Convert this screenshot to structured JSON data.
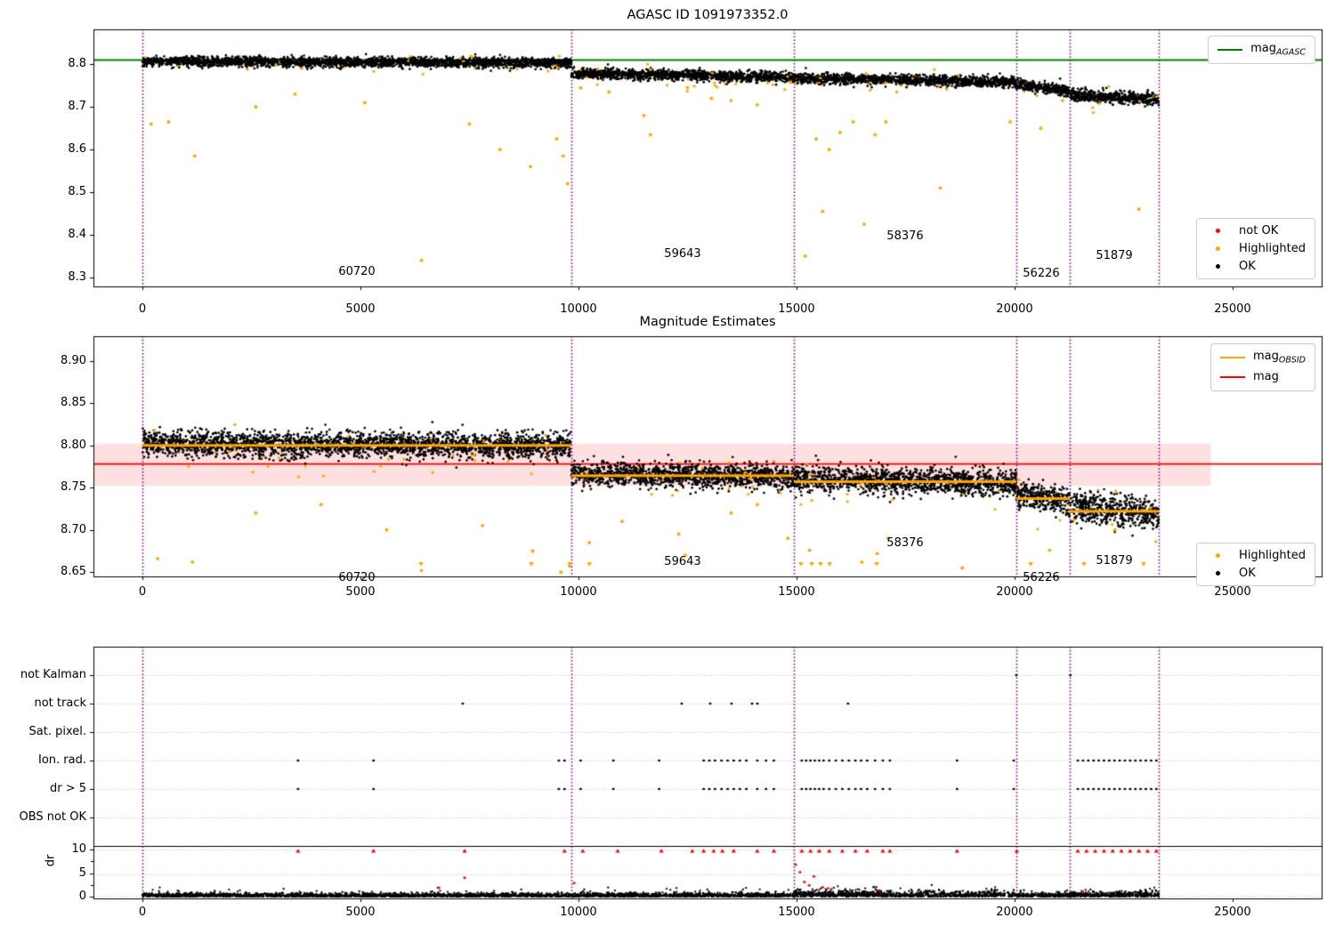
{
  "chart_data": [
    {
      "type": "scatter",
      "title": "AGASC ID 1091973352.0",
      "xlim": [
        -1122,
        27041
      ],
      "ylim": [
        8.279,
        8.882
      ],
      "xticks": [
        0,
        5000,
        10000,
        15000,
        20000,
        25000
      ],
      "yticks": [
        8.3,
        8.4,
        8.5,
        8.6,
        8.7,
        8.8
      ],
      "grid": false,
      "legend_position": [
        "upper right",
        "lower right"
      ],
      "mag_agasc": 8.81,
      "legend_line": {
        "label": "mag",
        "sub": "AGASC",
        "color": "#008000"
      },
      "legend_points": [
        {
          "label": "not OK",
          "color": "#ff0000"
        },
        {
          "label": "Highlighted",
          "color": "#ffa500"
        },
        {
          "label": "OK",
          "color": "#000000"
        }
      ],
      "vlines": [
        0,
        9837,
        14939,
        20041,
        21265,
        23306
      ],
      "vline_color": "#800080",
      "segments": [
        {
          "obsid": "60720",
          "t0": 0,
          "t1": 9837,
          "mag_start": 8.807,
          "mag_end": 8.803,
          "sigma": 0.0055,
          "n": 2560,
          "label_t": 4919,
          "label_mag": 8.3125
        },
        {
          "obsid": "59643",
          "t0": 9837,
          "t1": 14939,
          "mag_start": 8.779,
          "mag_end": 8.77,
          "sigma": 0.006,
          "n": 1330,
          "label_t": 12388,
          "label_mag": 8.354
        },
        {
          "obsid": "58376",
          "t0": 14939,
          "t1": 20041,
          "mag_start": 8.767,
          "mag_end": 8.759,
          "sigma": 0.006,
          "n": 1330,
          "label_t": 17490,
          "label_mag": 8.396
        },
        {
          "obsid": "56226",
          "t0": 20041,
          "t1": 21265,
          "mag_start": 8.753,
          "mag_end": 8.738,
          "sigma": 0.0065,
          "n": 320,
          "label_t": 20612,
          "label_mag": 8.308
        },
        {
          "obsid": "51879",
          "t0": 21265,
          "t1": 23306,
          "mag_start": 8.728,
          "mag_end": 8.718,
          "sigma": 0.007,
          "n": 530,
          "label_t": 22286,
          "label_mag": 8.35
        }
      ],
      "highlighted_outliers": [
        [
          200,
          8.66
        ],
        [
          600,
          8.665
        ],
        [
          1200,
          8.585
        ],
        [
          2600,
          8.7
        ],
        [
          3500,
          8.73
        ],
        [
          5100,
          8.71
        ],
        [
          6400,
          8.34
        ],
        [
          7500,
          8.66
        ],
        [
          8200,
          8.6
        ],
        [
          8900,
          8.56
        ],
        [
          9500,
          8.625
        ],
        [
          9650,
          8.585
        ],
        [
          9750,
          8.52
        ],
        [
          10050,
          8.745
        ],
        [
          10700,
          8.735
        ],
        [
          11500,
          8.68
        ],
        [
          11650,
          8.635
        ],
        [
          12500,
          8.745
        ],
        [
          13050,
          8.72
        ],
        [
          13500,
          8.715
        ],
        [
          14100,
          8.705
        ],
        [
          15200,
          8.35
        ],
        [
          15450,
          8.625
        ],
        [
          15600,
          8.455
        ],
        [
          15750,
          8.6
        ],
        [
          16000,
          8.64
        ],
        [
          16300,
          8.665
        ],
        [
          16550,
          8.425
        ],
        [
          16800,
          8.635
        ],
        [
          17050,
          8.665
        ],
        [
          18300,
          8.51
        ],
        [
          19900,
          8.665
        ],
        [
          20600,
          8.65
        ],
        [
          21100,
          8.715
        ],
        [
          22850,
          8.46
        ]
      ]
    },
    {
      "type": "scatter",
      "title": "Magnitude Estimates",
      "xlim": [
        -1122,
        27041
      ],
      "ylim": [
        8.645,
        8.929
      ],
      "xticks": [
        0,
        5000,
        10000,
        15000,
        20000,
        25000
      ],
      "yticks": [
        8.65,
        8.7,
        8.75,
        8.8,
        8.85,
        8.9
      ],
      "grid": false,
      "mag": 8.778,
      "mag_band": [
        8.752,
        8.802
      ],
      "band_trange": [
        -1122,
        24500
      ],
      "band_color": "rgba(255,0,0,0.12)",
      "legend_lines": [
        {
          "label": "mag",
          "sub": "OBSID",
          "color": "#ffa500"
        },
        {
          "label": "mag",
          "sub": "",
          "color": "#ff0000"
        }
      ],
      "legend_points": [
        {
          "label": "Highlighted",
          "color": "#ffa500"
        },
        {
          "label": "OK",
          "color": "#000000"
        }
      ],
      "vlines": [
        0,
        9837,
        14939,
        20041,
        21265,
        23306
      ],
      "vline_color": "#800080",
      "segments": [
        {
          "obsid": "60720",
          "t0": 0,
          "t1": 9837,
          "mag_obsid": 8.8,
          "mag_start": 8.802,
          "mag_end": 8.799,
          "sigma": 0.0075,
          "n": 2560,
          "label_t": 4919,
          "label_mag": 8.6425
        },
        {
          "obsid": "59643",
          "t0": 9837,
          "t1": 14939,
          "mag_obsid": 8.764,
          "mag_start": 8.767,
          "mag_end": 8.762,
          "sigma": 0.007,
          "n": 1330,
          "label_t": 12388,
          "label_mag": 8.662
        },
        {
          "obsid": "58376",
          "t0": 14939,
          "t1": 20041,
          "mag_obsid": 8.757,
          "mag_start": 8.761,
          "mag_end": 8.755,
          "sigma": 0.0075,
          "n": 1330,
          "label_t": 17490,
          "label_mag": 8.684
        },
        {
          "obsid": "56226",
          "t0": 20041,
          "t1": 21265,
          "mag_obsid": 8.737,
          "mag_start": 8.742,
          "mag_end": 8.734,
          "sigma": 0.008,
          "n": 320,
          "label_t": 20612,
          "label_mag": 8.6425
        },
        {
          "obsid": "51879",
          "t0": 21265,
          "t1": 23306,
          "mag_obsid": 8.722,
          "mag_start": 8.728,
          "mag_end": 8.718,
          "sigma": 0.009,
          "n": 530,
          "label_t": 22286,
          "label_mag": 8.663
        }
      ],
      "highlighted_outliers": [
        [
          350,
          8.666
        ],
        [
          1150,
          8.662
        ],
        [
          2600,
          8.72
        ],
        [
          4100,
          8.73
        ],
        [
          5600,
          8.7
        ],
        [
          6400,
          8.652
        ],
        [
          7800,
          8.705
        ],
        [
          8950,
          8.675
        ],
        [
          9600,
          8.65
        ],
        [
          9800,
          8.657
        ],
        [
          10250,
          8.685
        ],
        [
          11000,
          8.71
        ],
        [
          12300,
          8.695
        ],
        [
          12450,
          8.67
        ],
        [
          13500,
          8.72
        ],
        [
          14100,
          8.73
        ],
        [
          14800,
          8.69
        ],
        [
          15300,
          8.676
        ],
        [
          16500,
          8.662
        ],
        [
          16850,
          8.672
        ],
        [
          17100,
          8.69
        ],
        [
          18800,
          8.655
        ],
        [
          20800,
          8.676
        ],
        [
          22300,
          8.7
        ]
      ],
      "clipped_low_t": [
        6390,
        8920,
        9800,
        10250,
        15100,
        15350,
        15550,
        15760,
        16840,
        20370,
        21590,
        22960
      ],
      "clip_value": 8.6595
    },
    {
      "type": "scatter",
      "title": "",
      "xlim": [
        -1122,
        27041
      ],
      "xticks": [
        0,
        5000,
        10000,
        15000,
        20000,
        25000
      ],
      "rows": [
        "not Kalman",
        "not track",
        "Sat. pixel.",
        "Ion. rad.",
        "dr > 5",
        "OBS not OK"
      ],
      "flags": {
        "not Kalman": [
          20041,
          21280
        ],
        "not track": [
          7347,
          12367,
          13020,
          13510,
          13980,
          14102,
          16180
        ],
        "Sat. pixel.": [],
        "Ion. rad.": [
          3570,
          5300,
          9550,
          9680,
          10050,
          10800,
          11850,
          12870,
          13000,
          13130,
          13280,
          13420,
          13560,
          13700,
          13850,
          14100,
          14300,
          14480,
          15120,
          15220,
          15320,
          15420,
          15520,
          15620,
          15750,
          15900,
          16050,
          16200,
          16350,
          16480,
          16620,
          16800,
          16980,
          17140,
          18680,
          19980,
          21450,
          21570,
          21690,
          21810,
          21930,
          22050,
          22170,
          22290,
          22410,
          22530,
          22650,
          22770,
          22890,
          23010,
          23130,
          23250
        ],
        "dr > 5": [
          3570,
          5300,
          9550,
          9680,
          10050,
          10800,
          11850,
          12870,
          13000,
          13130,
          13280,
          13420,
          13560,
          13700,
          13850,
          14100,
          14300,
          14480,
          15120,
          15220,
          15320,
          15420,
          15520,
          15620,
          15750,
          15900,
          16050,
          16200,
          16350,
          16480,
          16620,
          16800,
          16980,
          17140,
          18680,
          19980,
          21450,
          21570,
          21690,
          21810,
          21930,
          22050,
          22170,
          22290,
          22410,
          22530,
          22650,
          22770,
          22890,
          23010,
          23130,
          23250
        ],
        "OBS not OK": []
      },
      "dr": {
        "ylabel": "dr",
        "yticks": [
          0,
          5,
          10
        ],
        "threshold_line": 10,
        "red_at_threshold": [
          3570,
          5300,
          7390,
          9680,
          10100,
          10900,
          11900,
          12610,
          12870,
          13100,
          13300,
          13560,
          14100,
          14480,
          15120,
          15320,
          15520,
          15750,
          16050,
          16350,
          16620,
          16980,
          17140,
          18680,
          20050,
          21450,
          21650,
          21850,
          22050,
          22250,
          22450,
          22650,
          22850,
          23050,
          23250
        ],
        "red_points": [
          [
            7390,
            4.0
          ],
          [
            6800,
            1.9
          ],
          [
            9900,
            2.9
          ],
          [
            14980,
            6.8
          ],
          [
            15080,
            5.2
          ],
          [
            15180,
            3.1
          ],
          [
            15290,
            2.4
          ],
          [
            15400,
            4.3
          ],
          [
            15600,
            2.0
          ],
          [
            15800,
            1.6
          ],
          [
            16900,
            1.3
          ],
          [
            21550,
            1.0
          ]
        ],
        "segments": [
          {
            "t0": 0,
            "t1": 9837,
            "sigma": 0.35,
            "n": 1970
          },
          {
            "t0": 9837,
            "t1": 14939,
            "sigma": 0.38,
            "n": 1020
          },
          {
            "t0": 14939,
            "t1": 20041,
            "sigma": 0.6,
            "n": 1020
          },
          {
            "t0": 20041,
            "t1": 21265,
            "sigma": 0.4,
            "n": 245
          },
          {
            "t0": 21265,
            "t1": 23306,
            "sigma": 0.55,
            "n": 410
          }
        ]
      },
      "vlines": [
        0,
        9837,
        14939,
        20041,
        21265,
        23306
      ],
      "vline_color": "#800080"
    }
  ],
  "colors": {
    "ok": "#000000",
    "highlighted": "#ffa500",
    "not_ok": "#ff0000",
    "mag_agasc_line": "#008000",
    "mag_line": "#ff0000",
    "mag_obsid_line": "#ffa500",
    "vline": "#800080",
    "grid": "#b8b8b8"
  }
}
